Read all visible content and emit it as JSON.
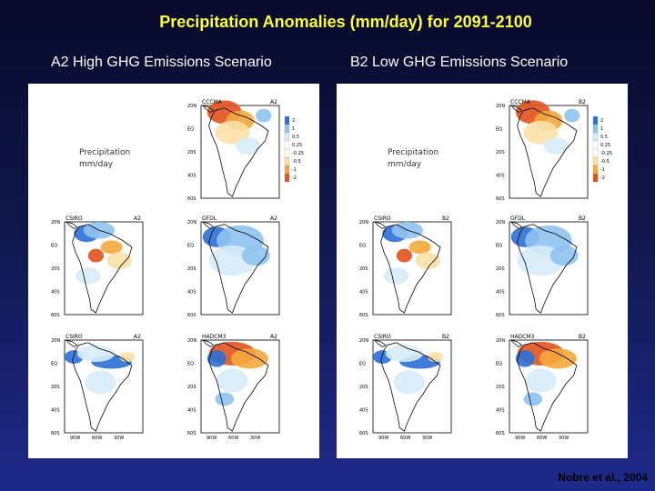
{
  "title": "Precipitation Anomalies (mm/day) for 2091-2100",
  "panels": [
    {
      "subtitle": "A2 High GHG Emissions Scenario",
      "scenario": "A2",
      "legend_label_line1": "Precipitation",
      "legend_label_line2": "mm/day",
      "maps": [
        {
          "model": "CCCMA",
          "tag": "A2",
          "anomaly": "dry-north"
        },
        {
          "model": "CSIRO",
          "tag": "A2",
          "anomaly": "mixed"
        },
        {
          "model": "GFDL",
          "tag": "A2",
          "anomaly": "wet"
        },
        {
          "model": "CSIRO",
          "tag": "A2",
          "anomaly": "wet-coast"
        },
        {
          "model": "HADCM3",
          "tag": "A2",
          "anomaly": "dry-strong"
        }
      ]
    },
    {
      "subtitle": "B2 Low GHG Emissions Scenario",
      "scenario": "B2",
      "legend_label_line1": "Precipitation",
      "legend_label_line2": "mm/day",
      "maps": [
        {
          "model": "CCCMA",
          "tag": "B2",
          "anomaly": "dry-north"
        },
        {
          "model": "CSIRO",
          "tag": "B2",
          "anomaly": "mixed"
        },
        {
          "model": "GFDL",
          "tag": "B2",
          "anomaly": "wet"
        },
        {
          "model": "CSIRO",
          "tag": "B2",
          "anomaly": "wet-coast"
        },
        {
          "model": "HADCM3",
          "tag": "B2",
          "anomaly": "dry-strong"
        }
      ]
    }
  ],
  "lat_ticks": [
    "20N",
    "EQ",
    "20S",
    "40S",
    "60S"
  ],
  "lon_ticks": [
    "90W",
    "60W",
    "30W"
  ],
  "colorbar_values": [
    "2",
    "1",
    "0.5",
    "0.25",
    "-0.25",
    "-0.5",
    "-1",
    "-2"
  ],
  "colors": {
    "title": "#ffff33",
    "wet_strong": "#2b6fd6",
    "wet": "#8ec3ef",
    "wet_light": "#d6ecfa",
    "dry_light": "#fbe1a6",
    "dry": "#f4a93c",
    "dry_strong": "#e0521c"
  },
  "credit": "Nobre et al., 2004"
}
